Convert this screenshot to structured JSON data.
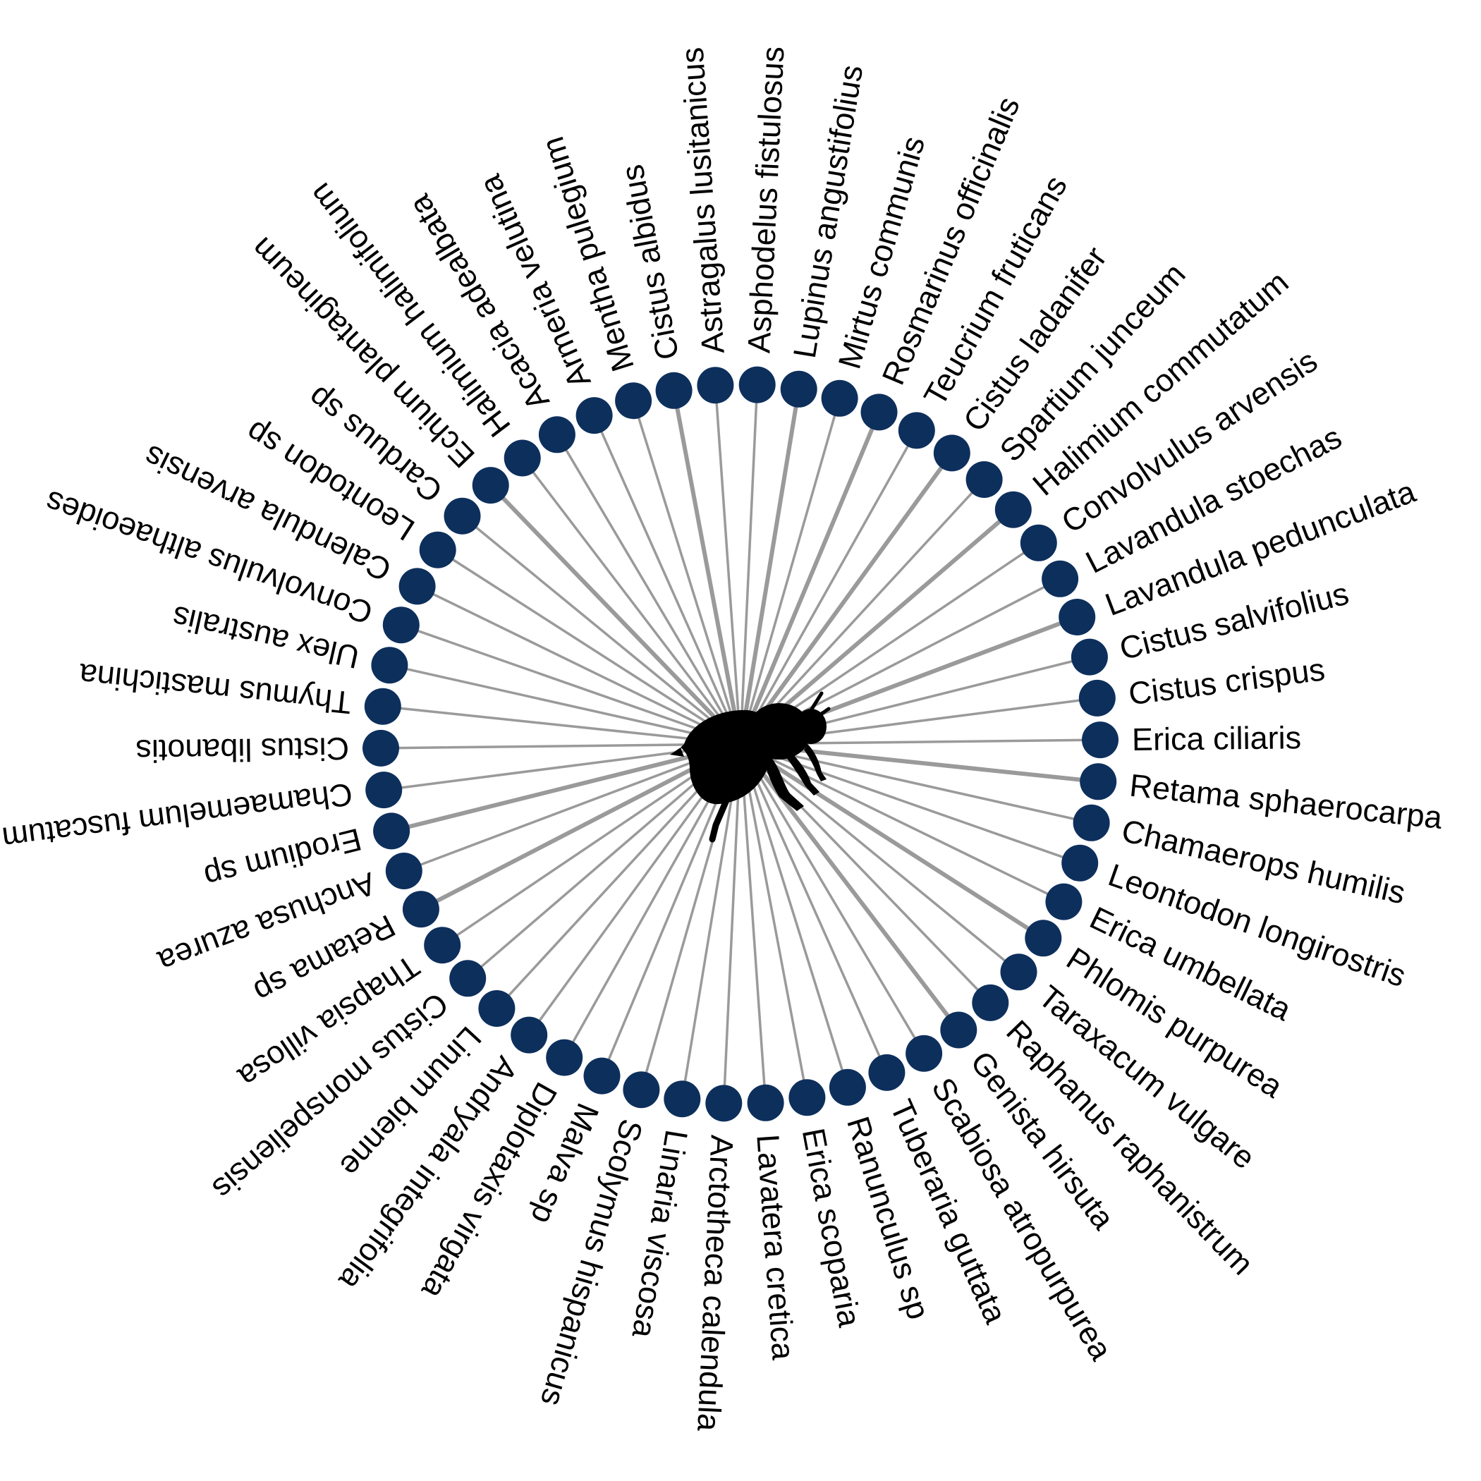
{
  "colors": {
    "node": "#0d2f5c",
    "edge": "#9a9a9a",
    "label": "#000000",
    "pollinator": "#000000"
  },
  "pollinator": {
    "icon": "bee-silhouette-icon"
  },
  "plants": [
    {
      "name": "Astragalus lusitanicus",
      "strong": false
    },
    {
      "name": "Asphodelus fistulosus",
      "strong": false
    },
    {
      "name": "Lupinus angustifolius",
      "strong": true
    },
    {
      "name": "Mirtus communis",
      "strong": false
    },
    {
      "name": "Rosmarinus officinalis",
      "strong": true
    },
    {
      "name": "Teucrium fruticans",
      "strong": false
    },
    {
      "name": "Cistus ladanifer",
      "strong": true
    },
    {
      "name": "Spartium junceum",
      "strong": false
    },
    {
      "name": "Halimium commutatum",
      "strong": true
    },
    {
      "name": "Convolvulus arvensis",
      "strong": false
    },
    {
      "name": "Lavandula stoechas",
      "strong": false
    },
    {
      "name": "Lavandula pedunculata",
      "strong": true
    },
    {
      "name": "Cistus salvifolius",
      "strong": false
    },
    {
      "name": "Cistus crispus",
      "strong": false
    },
    {
      "name": "Erica ciliaris",
      "strong": false
    },
    {
      "name": "Retama sphaerocarpa",
      "strong": true
    },
    {
      "name": "Chamaerops humilis",
      "strong": false
    },
    {
      "name": "Leontodon longirostris",
      "strong": false
    },
    {
      "name": "Erica umbellata",
      "strong": false
    },
    {
      "name": "Phlomis purpurea",
      "strong": true
    },
    {
      "name": "Taraxacum vulgare",
      "strong": false
    },
    {
      "name": "Raphanus raphanistrum",
      "strong": false
    },
    {
      "name": "Genista hirsuta",
      "strong": true
    },
    {
      "name": "Scabiosa atropurpurea",
      "strong": false
    },
    {
      "name": "Tuberaria guttata",
      "strong": false
    },
    {
      "name": "Ranunculus sp",
      "strong": false
    },
    {
      "name": "Erica scoparia",
      "strong": false
    },
    {
      "name": "Lavatera cretica",
      "strong": false
    },
    {
      "name": "Arctotheca calendula",
      "strong": false
    },
    {
      "name": "Linaria viscosa",
      "strong": false
    },
    {
      "name": "Scolymus hispanicus",
      "strong": false
    },
    {
      "name": "Malva sp",
      "strong": false
    },
    {
      "name": "Diplotaxis virgata",
      "strong": false
    },
    {
      "name": "Andryala integrifolia",
      "strong": false
    },
    {
      "name": "Linum bienne",
      "strong": false
    },
    {
      "name": "Cistus monspeliensis",
      "strong": false
    },
    {
      "name": "Thapsia villosa",
      "strong": false
    },
    {
      "name": "Retama sp",
      "strong": true
    },
    {
      "name": "Anchusa azurea",
      "strong": false
    },
    {
      "name": "Erodium sp",
      "strong": true
    },
    {
      "name": "Chamaemelum fuscatum",
      "strong": false
    },
    {
      "name": "Cistus libanotis",
      "strong": false
    },
    {
      "name": "Thymus mastichina",
      "strong": false
    },
    {
      "name": "Ulex australis",
      "strong": false
    },
    {
      "name": "Convolvulus althaeoides",
      "strong": false
    },
    {
      "name": "Calendula arvensis",
      "strong": false
    },
    {
      "name": "Leontodon sp",
      "strong": false
    },
    {
      "name": "Carduus sp",
      "strong": false
    },
    {
      "name": "Echium plantagineum",
      "strong": true
    },
    {
      "name": "Halimium halimifolium",
      "strong": false
    },
    {
      "name": "Acacia adealbata",
      "strong": false
    },
    {
      "name": "Armeria velutina",
      "strong": false
    },
    {
      "name": "Mentha pulegium",
      "strong": false
    },
    {
      "name": "Cistus albidus",
      "strong": true
    }
  ]
}
